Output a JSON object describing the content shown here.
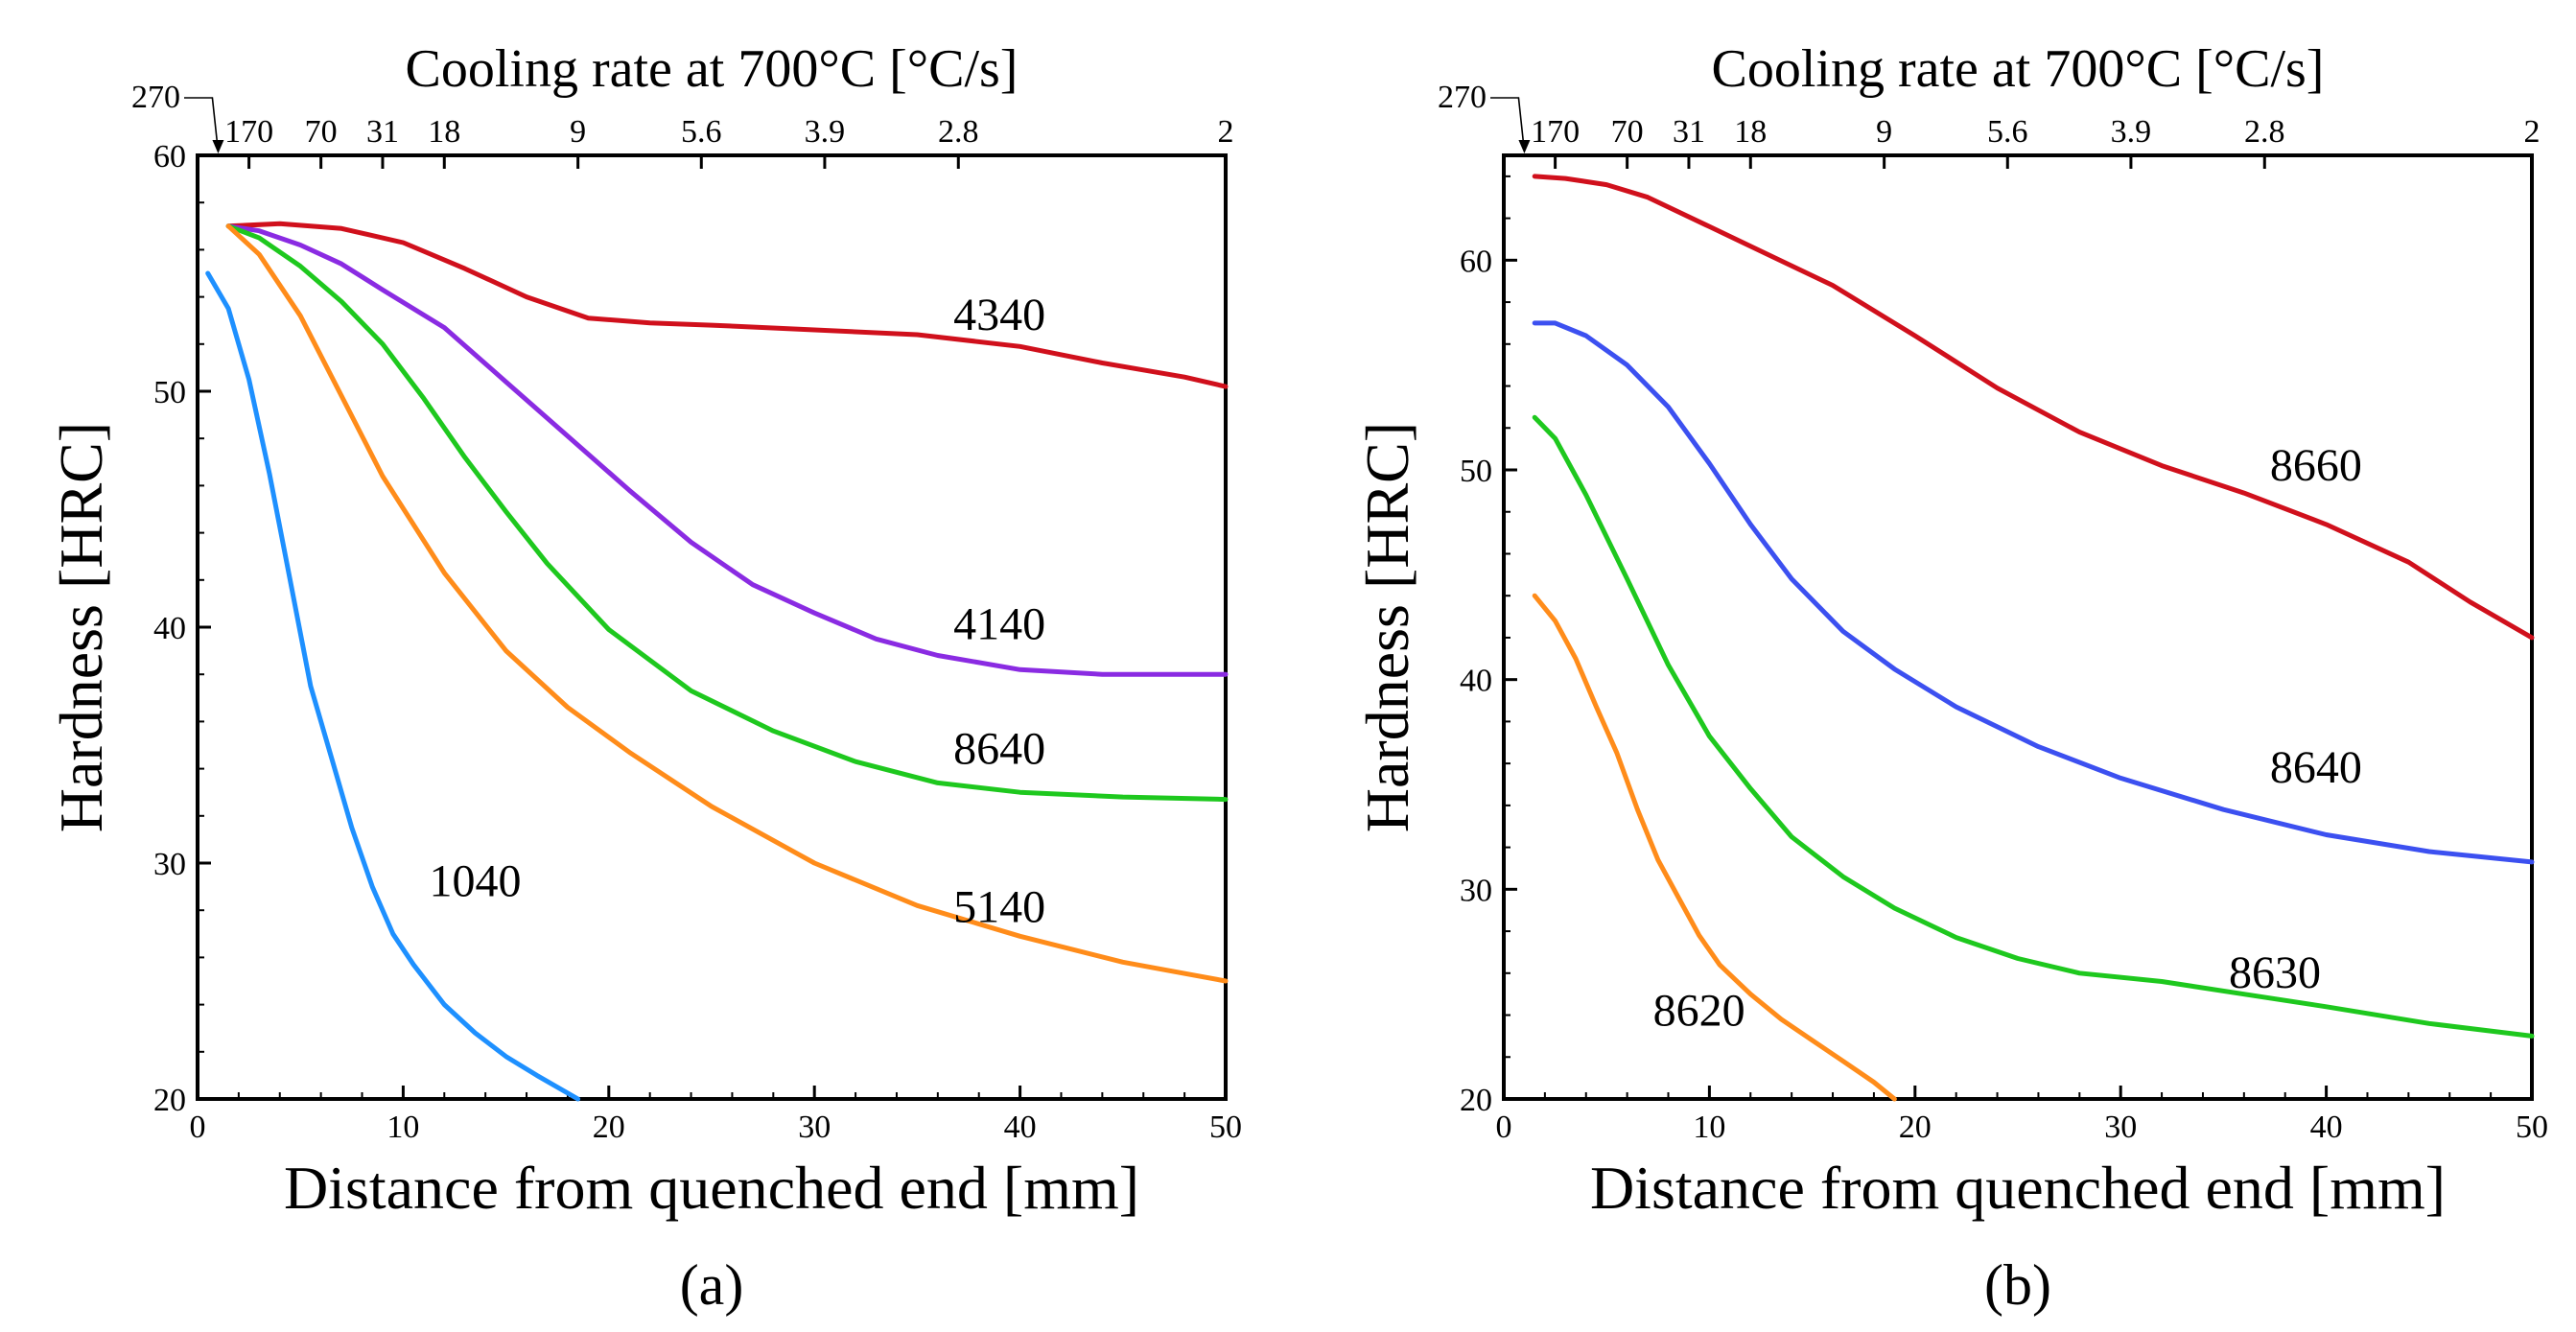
{
  "figure": {
    "panel_captions": [
      "(a)",
      "(b)"
    ]
  },
  "chart_data": [
    {
      "type": "line",
      "panel": "(a)",
      "title": "",
      "xlabel": "Distance from quenched end [mm]",
      "ylabel": "Hardness [HRC]",
      "top_axis_label": "Cooling rate at 700°C [°C/s]",
      "xlim": [
        0,
        50
      ],
      "ylim": [
        20,
        60
      ],
      "xticks": [
        0,
        10,
        20,
        30,
        40,
        50
      ],
      "yticks": [
        20,
        30,
        40,
        50,
        60
      ],
      "top_ticks": [
        {
          "x": 1.0,
          "label": "270"
        },
        {
          "x": 2.5,
          "label": "170"
        },
        {
          "x": 6.0,
          "label": "70"
        },
        {
          "x": 9.0,
          "label": "31"
        },
        {
          "x": 12.0,
          "label": "18"
        },
        {
          "x": 18.5,
          "label": "9"
        },
        {
          "x": 24.5,
          "label": "5.6"
        },
        {
          "x": 30.5,
          "label": "3.9"
        },
        {
          "x": 37.0,
          "label": "2.8"
        },
        {
          "x": 50.0,
          "label": "2"
        }
      ],
      "series": [
        {
          "name": "4340",
          "color": "#d0101c",
          "label_at": [
            39,
            52.6
          ],
          "x": [
            1.5,
            4,
            7,
            10,
            13,
            16,
            19,
            22,
            25,
            30,
            35,
            40,
            44,
            48,
            50
          ],
          "y": [
            57,
            57.1,
            56.9,
            56.3,
            55.2,
            54,
            53.1,
            52.9,
            52.8,
            52.6,
            52.4,
            51.9,
            51.2,
            50.6,
            50.2
          ]
        },
        {
          "name": "4140",
          "color": "#8a2be2",
          "label_at": [
            39,
            39.5
          ],
          "x": [
            1.5,
            3,
            5,
            7,
            9,
            12,
            15,
            18,
            21,
            24,
            27,
            30,
            33,
            36,
            40,
            44,
            50
          ],
          "y": [
            57,
            56.8,
            56.2,
            55.4,
            54.3,
            52.7,
            50.4,
            48.1,
            45.8,
            43.6,
            41.8,
            40.6,
            39.5,
            38.8,
            38.2,
            38,
            38
          ]
        },
        {
          "name": "8640",
          "color": "#1ec81e",
          "label_at": [
            39,
            34.2
          ],
          "x": [
            1.5,
            3,
            5,
            7,
            9,
            11,
            13,
            15,
            17,
            20,
            24,
            28,
            32,
            36,
            40,
            45,
            50
          ],
          "y": [
            57,
            56.5,
            55.3,
            53.8,
            52,
            49.7,
            47.2,
            44.9,
            42.7,
            39.9,
            37.3,
            35.6,
            34.3,
            33.4,
            33,
            32.8,
            32.7
          ]
        },
        {
          "name": "5140",
          "color": "#ff8c1a",
          "label_at": [
            39,
            27.5
          ],
          "x": [
            1.5,
            3,
            5,
            7,
            9,
            12,
            15,
            18,
            21,
            25,
            30,
            35,
            40,
            45,
            50
          ],
          "y": [
            57,
            55.8,
            53.2,
            49.8,
            46.4,
            42.3,
            39,
            36.6,
            34.7,
            32.4,
            30,
            28.2,
            26.9,
            25.8,
            25
          ]
        },
        {
          "name": "1040",
          "color": "#1e90ff",
          "label_at": [
            13.5,
            28.6
          ],
          "x": [
            0.5,
            1.5,
            2.5,
            3.5,
            4.5,
            5.5,
            6.5,
            7.5,
            8.5,
            9.5,
            10.5,
            12,
            13.5,
            15,
            16.5,
            18.5
          ],
          "y": [
            55,
            53.5,
            50.5,
            46.5,
            42,
            37.5,
            34.5,
            31.5,
            29,
            27,
            25.7,
            24,
            22.8,
            21.8,
            21,
            20
          ]
        }
      ]
    },
    {
      "type": "line",
      "panel": "(b)",
      "title": "",
      "xlabel": "Distance from quenched end [mm]",
      "ylabel": "Hardness [HRC]",
      "top_axis_label": "Cooling rate at 700°C [°C/s]",
      "xlim": [
        0,
        50
      ],
      "ylim": [
        20,
        65
      ],
      "xticks": [
        0,
        10,
        20,
        30,
        40,
        50
      ],
      "yticks": [
        20,
        30,
        40,
        50,
        60
      ],
      "top_ticks": [
        {
          "x": 1.0,
          "label": "270"
        },
        {
          "x": 2.5,
          "label": "170"
        },
        {
          "x": 6.0,
          "label": "70"
        },
        {
          "x": 9.0,
          "label": "31"
        },
        {
          "x": 12.0,
          "label": "18"
        },
        {
          "x": 18.5,
          "label": "9"
        },
        {
          "x": 24.5,
          "label": "5.6"
        },
        {
          "x": 30.5,
          "label": "3.9"
        },
        {
          "x": 37.0,
          "label": "2.8"
        },
        {
          "x": 50.0,
          "label": "2"
        }
      ],
      "series": [
        {
          "name": "8660",
          "color": "#d0101c",
          "label_at": [
            39.5,
            49.5
          ],
          "x": [
            1.5,
            3,
            5,
            7,
            10,
            13,
            16,
            20,
            24,
            28,
            32,
            36,
            40,
            44,
            47,
            50
          ],
          "y": [
            64,
            63.9,
            63.6,
            63,
            61.6,
            60.2,
            58.8,
            56.4,
            53.9,
            51.8,
            50.2,
            48.9,
            47.4,
            45.6,
            43.7,
            42
          ]
        },
        {
          "name": "8640",
          "color": "#3c50f0",
          "label_at": [
            39.5,
            35.1
          ],
          "x": [
            1.5,
            2.5,
            4,
            6,
            8,
            10,
            12,
            14,
            16.5,
            19,
            22,
            26,
            30,
            35,
            40,
            45,
            50
          ],
          "y": [
            57,
            57,
            56.4,
            55,
            53,
            50.3,
            47.4,
            44.8,
            42.3,
            40.5,
            38.7,
            36.8,
            35.3,
            33.8,
            32.6,
            31.8,
            31.3
          ]
        },
        {
          "name": "8630",
          "color": "#1ec81e",
          "label_at": [
            37.5,
            25.3
          ],
          "x": [
            1.5,
            2.5,
            4,
            6,
            8,
            10,
            12,
            14,
            16.5,
            19,
            22,
            25,
            28,
            32,
            36,
            40,
            45,
            50
          ],
          "y": [
            52.5,
            51.5,
            48.8,
            44.8,
            40.7,
            37.3,
            34.8,
            32.5,
            30.6,
            29.1,
            27.7,
            26.7,
            26,
            25.6,
            25,
            24.4,
            23.6,
            23
          ]
        },
        {
          "name": "8620",
          "color": "#ff8c1a",
          "label_at": [
            9.5,
            23.5
          ],
          "x": [
            1.5,
            2.5,
            3.5,
            4.5,
            5.5,
            6.5,
            7.5,
            8.5,
            9.5,
            10.5,
            12,
            13.5,
            15,
            16.5,
            18,
            19
          ],
          "y": [
            44,
            42.8,
            41,
            38.7,
            36.5,
            33.8,
            31.4,
            29.6,
            27.8,
            26.4,
            25,
            23.8,
            22.8,
            21.8,
            20.8,
            20
          ]
        }
      ]
    }
  ]
}
